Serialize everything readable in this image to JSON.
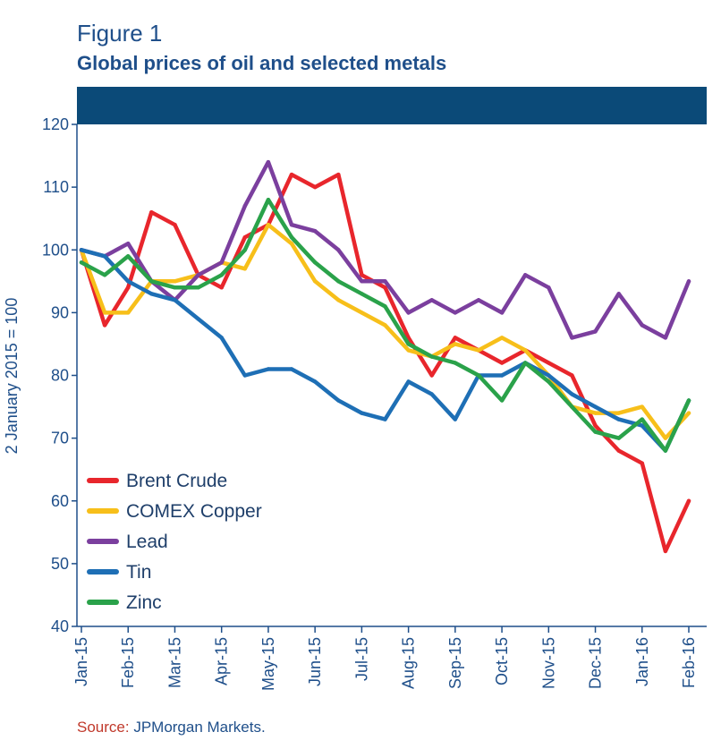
{
  "figure": {
    "label": "Figure 1",
    "title": "Global prices of oil and selected metals",
    "source_key": "Source:",
    "source_text": " JPMorgan Markets."
  },
  "colors": {
    "header_band": "#0b4a78",
    "axis": "#1f4f8a",
    "text": "#1f4f8a"
  },
  "chart_data": {
    "type": "line",
    "title": "Global prices of oil and selected metals",
    "xlabel": "",
    "ylabel": "2 January 2015 = 100",
    "ylim": [
      40,
      120
    ],
    "yticks": [
      40,
      50,
      60,
      70,
      80,
      90,
      100,
      110,
      120
    ],
    "grid": false,
    "legend_position": "bottom-left",
    "x_tick_labels": [
      "Jan-15",
      "Feb-15",
      "Mar-15",
      "Apr-15",
      "May-15",
      "Jun-15",
      "Jul-15",
      "Aug-15",
      "Sep-15",
      "Oct-15",
      "Nov-15",
      "Dec-15",
      "Jan-16",
      "Feb-16"
    ],
    "x": [
      "Jan-15",
      "mid Jan-15",
      "Feb-15",
      "mid Feb-15",
      "Mar-15",
      "mid Mar-15",
      "Apr-15",
      "mid Apr-15",
      "May-15",
      "mid May-15",
      "Jun-15",
      "mid Jun-15",
      "Jul-15",
      "mid Jul-15",
      "Aug-15",
      "mid Aug-15",
      "Sep-15",
      "mid Sep-15",
      "Oct-15",
      "mid Oct-15",
      "Nov-15",
      "mid Nov-15",
      "Dec-15",
      "mid Dec-15",
      "Jan-16",
      "mid Jan-16",
      "Feb-16"
    ],
    "series": [
      {
        "name": "Brent Crude",
        "color": "#e8262c",
        "values": [
          100,
          88,
          94,
          106,
          104,
          96,
          94,
          102,
          104,
          112,
          110,
          112,
          96,
          94,
          86,
          80,
          86,
          84,
          82,
          84,
          82,
          80,
          72,
          68,
          66,
          52,
          60
        ]
      },
      {
        "name": "COMEX Copper",
        "color": "#f7bf1a",
        "values": [
          100,
          90,
          90,
          95,
          95,
          96,
          98,
          97,
          104,
          101,
          95,
          92,
          90,
          88,
          84,
          83,
          85,
          84,
          86,
          84,
          80,
          75,
          74,
          74,
          75,
          70,
          74
        ]
      },
      {
        "name": "Lead",
        "color": "#7b3f9e",
        "values": [
          100,
          99,
          101,
          95,
          92,
          96,
          98,
          107,
          114,
          104,
          103,
          100,
          95,
          95,
          90,
          92,
          90,
          92,
          90,
          96,
          94,
          86,
          87,
          93,
          88,
          86,
          95
        ]
      },
      {
        "name": "Tin",
        "color": "#1e6fb5",
        "values": [
          100,
          99,
          95,
          93,
          92,
          89,
          86,
          80,
          81,
          81,
          79,
          76,
          74,
          73,
          79,
          77,
          73,
          80,
          80,
          82,
          80,
          77,
          75,
          73,
          72,
          68,
          76
        ]
      },
      {
        "name": "Zinc",
        "color": "#2aa24a",
        "values": [
          98,
          96,
          99,
          95,
          94,
          94,
          96,
          100,
          108,
          102,
          98,
          95,
          93,
          91,
          85,
          83,
          82,
          80,
          76,
          82,
          79,
          75,
          71,
          70,
          73,
          68,
          76
        ]
      }
    ]
  }
}
